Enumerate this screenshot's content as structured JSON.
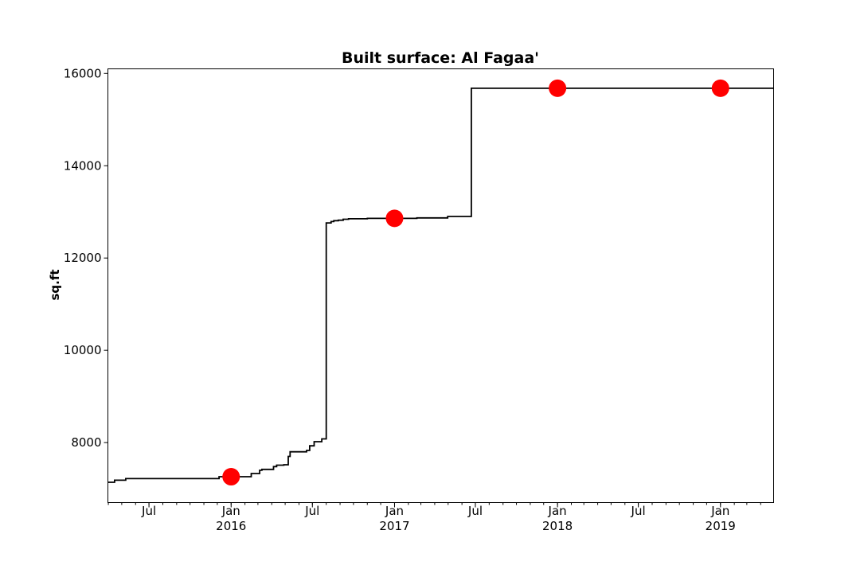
{
  "chart_data": {
    "type": "line",
    "title": "Built surface: Al Fagaa'",
    "xlabel": "",
    "ylabel": "sq.ft",
    "xlim": [
      "2015-03-31",
      "2019-04-30"
    ],
    "ylim": [
      6700,
      16100
    ],
    "yticks": [
      8000,
      10000,
      12000,
      14000,
      16000
    ],
    "xticks_major": [
      {
        "date": "2015-07-01",
        "label": "Jul",
        "sublabel": ""
      },
      {
        "date": "2016-01-01",
        "label": "Jan",
        "sublabel": "2016"
      },
      {
        "date": "2016-07-01",
        "label": "Jul",
        "sublabel": ""
      },
      {
        "date": "2017-01-01",
        "label": "Jan",
        "sublabel": "2017"
      },
      {
        "date": "2017-07-01",
        "label": "Jul",
        "sublabel": ""
      },
      {
        "date": "2018-01-01",
        "label": "Jan",
        "sublabel": "2018"
      },
      {
        "date": "2018-07-01",
        "label": "Jul",
        "sublabel": ""
      },
      {
        "date": "2019-01-01",
        "label": "Jan",
        "sublabel": "2019"
      }
    ],
    "series": [
      {
        "style": "step",
        "color": "#000000",
        "x": [
          "2015-03-31",
          "2015-04-15",
          "2015-05-10",
          "2015-12-05",
          "2016-02-15",
          "2016-03-05",
          "2016-03-10",
          "2016-04-05",
          "2016-04-12",
          "2016-04-28",
          "2016-05-08",
          "2016-05-12",
          "2016-06-18",
          "2016-06-25",
          "2016-07-05",
          "2016-07-22",
          "2016-08-01",
          "2016-08-12",
          "2016-08-18",
          "2016-08-28",
          "2016-09-08",
          "2016-09-20",
          "2016-11-01",
          "2017-02-20",
          "2017-04-30",
          "2017-06-22",
          "2019-04-30"
        ],
        "y": [
          7140,
          7185,
          7220,
          7260,
          7330,
          7400,
          7420,
          7480,
          7510,
          7520,
          7700,
          7800,
          7830,
          7930,
          8020,
          8080,
          12760,
          12790,
          12810,
          12820,
          12840,
          12850,
          12860,
          12870,
          12900,
          15680,
          15680
        ]
      },
      {
        "style": "markers",
        "color": "#ff0000",
        "x": [
          "2016-01-01",
          "2017-01-01",
          "2018-01-01",
          "2019-01-01"
        ],
        "y": [
          7260,
          12860,
          15680,
          15680
        ]
      }
    ]
  }
}
